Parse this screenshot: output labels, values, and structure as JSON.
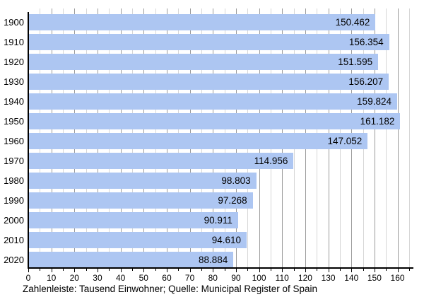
{
  "chart_data": {
    "type": "bar",
    "orientation": "horizontal",
    "categories": [
      "1900",
      "1910",
      "1920",
      "1930",
      "1940",
      "1950",
      "1960",
      "1970",
      "1980",
      "1990",
      "2000",
      "2010",
      "2020"
    ],
    "values": [
      150.462,
      156.354,
      151.595,
      156.207,
      159.824,
      161.182,
      147.052,
      114.956,
      98.803,
      97.268,
      90.911,
      94.61,
      88.884
    ],
    "value_labels": [
      "150.462",
      "156.354",
      "151.595",
      "156.207",
      "159.824",
      "161.182",
      "147.052",
      "114.956",
      "98.803",
      "97.268",
      "90.911",
      "94.610",
      "88.884"
    ],
    "ylabel": "",
    "xlabel": "",
    "x_ticks": [
      0,
      10,
      20,
      30,
      40,
      50,
      60,
      70,
      80,
      90,
      100,
      110,
      120,
      130,
      140,
      150,
      160
    ],
    "x_minor_step": 5,
    "xlim": [
      0,
      167
    ],
    "grid": "vertical, minor every 5 / major every 10",
    "legend": "none",
    "caption": "Zahlenleiste: Tausend Einwohner; Quelle: Municipal Register of Spain",
    "colors": {
      "bar": "#adc6f2",
      "grid_major": "#9a9a9a",
      "grid_minor": "#d6d6d6",
      "axis": "#000000",
      "text": "#000000"
    }
  }
}
